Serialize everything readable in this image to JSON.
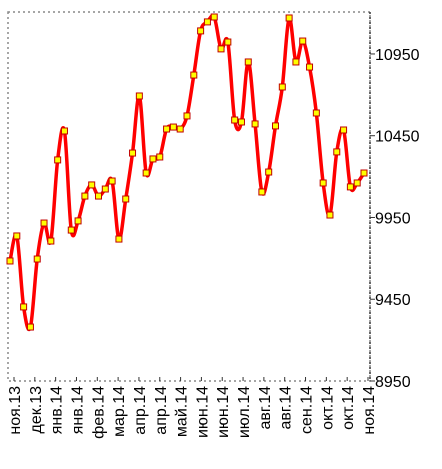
{
  "chart_data": {
    "type": "line",
    "x_labels": [
      "ноя.13",
      "дек.13",
      "янв.14",
      "янв.14",
      "фев.14",
      "мар.14",
      "апр.14",
      "апр.14",
      "май.14",
      "июн.14",
      "июн.14",
      "июл.14",
      "авг.14",
      "авг.14",
      "сен.14",
      "окт.14",
      "окт.14",
      "ноя.14"
    ],
    "series": [
      {
        "color": "#ff0000",
        "marker_color": "#ffff00",
        "values": [
          9684,
          9837,
          9403,
          9280,
          9696,
          9916,
          9806,
          10302,
          10479,
          9873,
          9929,
          10081,
          10149,
          10081,
          10124,
          10173,
          9818,
          10063,
          10344,
          10693,
          10222,
          10308,
          10320,
          10491,
          10503,
          10491,
          10571,
          10821,
          11091,
          11146,
          11176,
          10981,
          11023,
          10546,
          10534,
          10901,
          10522,
          10106,
          10228,
          10510,
          10748,
          11170,
          10901,
          11029,
          10870,
          10589,
          10161,
          9965,
          10351,
          10485,
          10137,
          10161,
          10222
        ]
      }
    ],
    "ylim": [
      8950,
      11176
    ],
    "yticks": [
      8950,
      9450,
      9950,
      10450,
      10950
    ],
    "y_axis_side": "right"
  }
}
